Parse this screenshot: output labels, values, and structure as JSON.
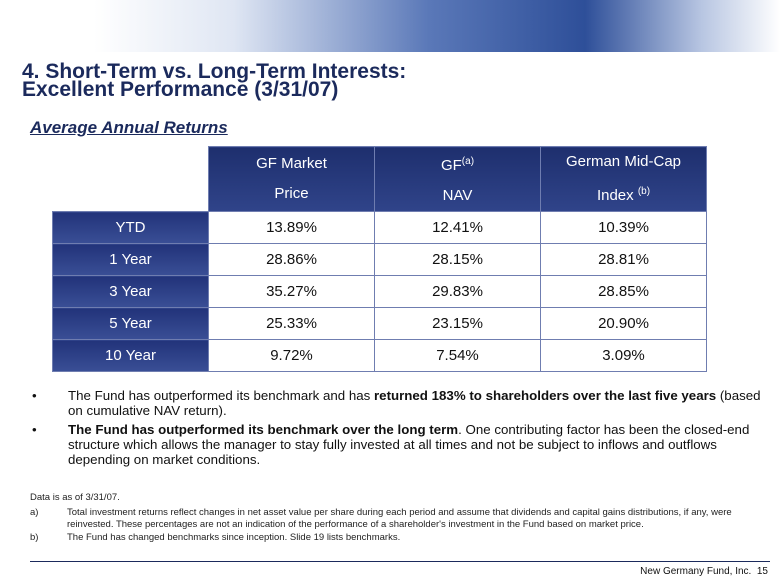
{
  "title": {
    "line1": "4. Short-Term vs. Long-Term Interests:",
    "line2": "Excellent Performance (3/31/07)"
  },
  "subtitle": "Average Annual Returns",
  "table": {
    "columns": [
      {
        "line1": "GF Market",
        "line2": "Price"
      },
      {
        "line1": "GF",
        "sup": "(a)",
        "line2": "NAV"
      },
      {
        "line1": "German Mid-Cap",
        "line2": "Index",
        "sup2": "(b)"
      }
    ],
    "rows": [
      [
        "YTD",
        "13.89%",
        "12.41%",
        "10.39%"
      ],
      [
        "1 Year",
        "28.86%",
        "28.15%",
        "28.81%"
      ],
      [
        "3 Year",
        "35.27%",
        "29.83%",
        "28.85%"
      ],
      [
        "5 Year",
        "25.33%",
        "23.15%",
        "20.90%"
      ],
      [
        "10 Year",
        "9.72%",
        "7.54%",
        "3.09%"
      ]
    ]
  },
  "bullets": [
    [
      {
        "text": "The Fund has outperformed its benchmark and has ",
        "bold": false
      },
      {
        "text": "returned 183% to shareholders over the last five years",
        "bold": true
      },
      {
        "text": " (based on cumulative NAV return).",
        "bold": false
      }
    ],
    [
      {
        "text": "The Fund has outperformed its benchmark over the long term",
        "bold": true
      },
      {
        "text": ".  One contributing factor has been the closed-end structure which allows the manager to stay fully invested at all times and not be subject to inflows and outflows depending on market conditions.",
        "bold": false
      }
    ]
  ],
  "footnotes": {
    "note": "Data is as of 3/31/07.",
    "items": [
      {
        "marker": "a)",
        "text": "Total investment returns reflect changes in net asset value per share during each period and assume that dividends and capital gains distributions, if any, were reinvested.  These percentages are not an indication of the performance of a shareholder's investment in the Fund based on market price."
      },
      {
        "marker": "b)",
        "text": "The Fund has changed benchmarks since inception. Slide 19 lists benchmarks."
      }
    ]
  },
  "footer": {
    "company": "New Germany Fund, Inc.",
    "page": "15"
  }
}
